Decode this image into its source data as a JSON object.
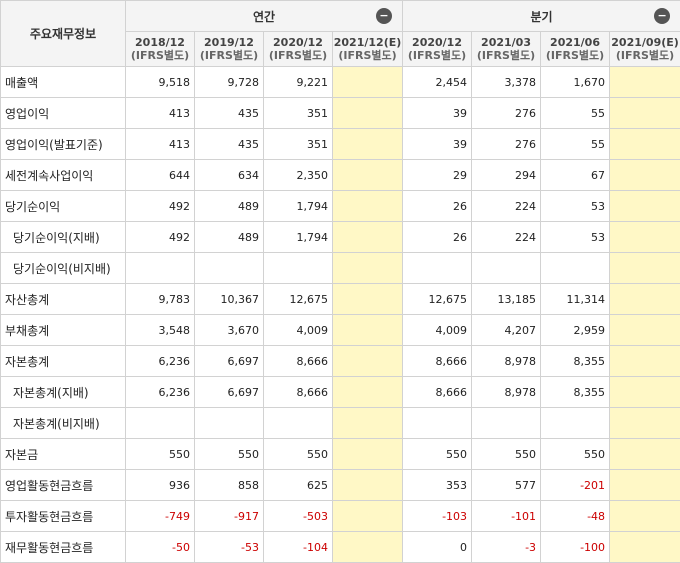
{
  "header": {
    "corner_label": "주요재무정보",
    "groups": [
      {
        "label": "연간",
        "collapse_icon": "minus-circle-icon"
      },
      {
        "label": "분기",
        "collapse_icon": "minus-circle-icon"
      }
    ],
    "columns": [
      {
        "date": "2018/12",
        "basis": "(IFRS별도)"
      },
      {
        "date": "2019/12",
        "basis": "(IFRS별도)"
      },
      {
        "date": "2020/12",
        "basis": "(IFRS별도)"
      },
      {
        "date": "2021/12(E)",
        "basis": "(IFRS별도)"
      },
      {
        "date": "2020/12",
        "basis": "(IFRS별도)"
      },
      {
        "date": "2021/03",
        "basis": "(IFRS별도)"
      },
      {
        "date": "2021/06",
        "basis": "(IFRS별도)"
      },
      {
        "date": "2021/09(E)",
        "basis": "(IFRS별도)"
      }
    ]
  },
  "rows": [
    {
      "label": "매출액",
      "values": [
        "9,518",
        "9,728",
        "9,221",
        "",
        "2,454",
        "3,378",
        "1,670",
        ""
      ]
    },
    {
      "label": "영업이익",
      "values": [
        "413",
        "435",
        "351",
        "",
        "39",
        "276",
        "55",
        ""
      ]
    },
    {
      "label": "영업이익(발표기준)",
      "values": [
        "413",
        "435",
        "351",
        "",
        "39",
        "276",
        "55",
        ""
      ]
    },
    {
      "label": "세전계속사업이익",
      "values": [
        "644",
        "634",
        "2,350",
        "",
        "29",
        "294",
        "67",
        ""
      ]
    },
    {
      "label": "당기순이익",
      "values": [
        "492",
        "489",
        "1,794",
        "",
        "26",
        "224",
        "53",
        ""
      ]
    },
    {
      "label": "당기순이익(지배)",
      "values": [
        "492",
        "489",
        "1,794",
        "",
        "26",
        "224",
        "53",
        ""
      ]
    },
    {
      "label": "당기순이익(비지배)",
      "values": [
        "",
        "",
        "",
        "",
        "",
        "",
        "",
        ""
      ]
    },
    {
      "label": "자산총계",
      "values": [
        "9,783",
        "10,367",
        "12,675",
        "",
        "12,675",
        "13,185",
        "11,314",
        ""
      ]
    },
    {
      "label": "부채총계",
      "values": [
        "3,548",
        "3,670",
        "4,009",
        "",
        "4,009",
        "4,207",
        "2,959",
        ""
      ]
    },
    {
      "label": "자본총계",
      "values": [
        "6,236",
        "6,697",
        "8,666",
        "",
        "8,666",
        "8,978",
        "8,355",
        ""
      ]
    },
    {
      "label": "자본총계(지배)",
      "values": [
        "6,236",
        "6,697",
        "8,666",
        "",
        "8,666",
        "8,978",
        "8,355",
        ""
      ]
    },
    {
      "label": "자본총계(비지배)",
      "values": [
        "",
        "",
        "",
        "",
        "",
        "",
        "",
        ""
      ]
    },
    {
      "label": "자본금",
      "values": [
        "550",
        "550",
        "550",
        "",
        "550",
        "550",
        "550",
        ""
      ]
    },
    {
      "label": "영업활동현금흐름",
      "values": [
        "936",
        "858",
        "625",
        "",
        "353",
        "577",
        "-201",
        ""
      ]
    },
    {
      "label": "투자활동현금흐름",
      "values": [
        "-749",
        "-917",
        "-503",
        "",
        "-103",
        "-101",
        "-48",
        ""
      ]
    },
    {
      "label": "재무활동현금흐름",
      "values": [
        "-50",
        "-53",
        "-104",
        "",
        "0",
        "-3",
        "-100",
        ""
      ]
    }
  ],
  "colors": {
    "estimate_bg": "#fff8c6",
    "negative_text": "#cc0000",
    "header_bg": "#f4f4f4"
  }
}
